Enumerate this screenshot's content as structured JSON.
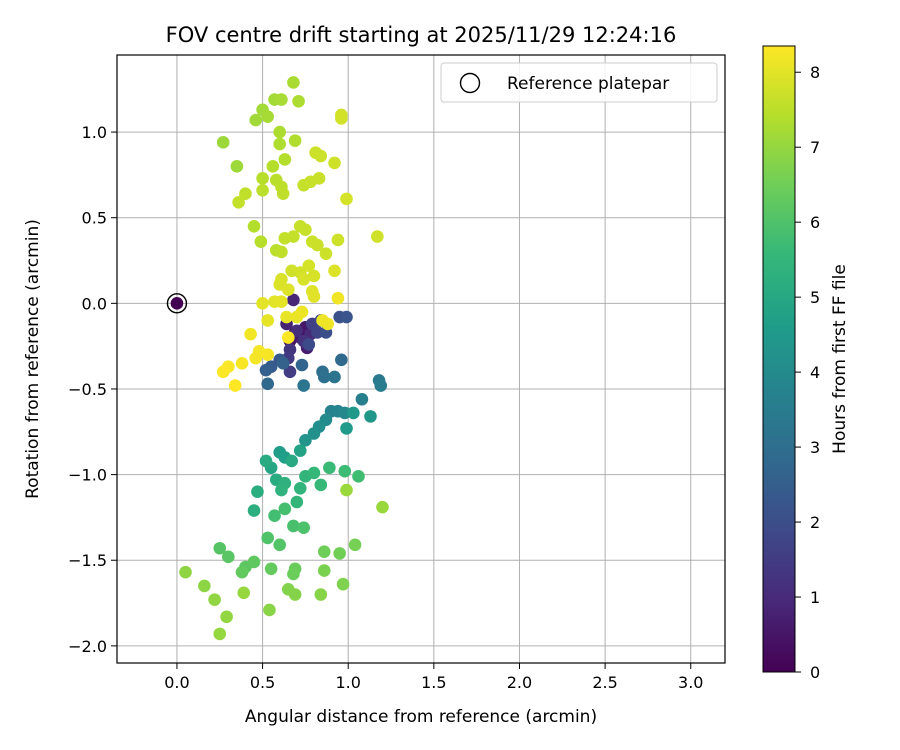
{
  "chart_data": {
    "type": "scatter",
    "title": "FOV centre drift starting at 2025/11/29 12:24:16",
    "xlabel": "Angular distance from reference (arcmin)",
    "ylabel": "Rotation from reference (arcmin)",
    "xlim": [
      -0.35,
      3.2
    ],
    "ylim": [
      -2.1,
      1.45
    ],
    "xticks": [
      0.0,
      0.5,
      1.0,
      1.5,
      2.0,
      2.5,
      3.0
    ],
    "xtick_labels": [
      "0.0",
      "0.5",
      "1.0",
      "1.5",
      "2.0",
      "2.5",
      "3.0"
    ],
    "yticks": [
      -2.0,
      -1.5,
      -1.0,
      -0.5,
      0.0,
      0.5,
      1.0
    ],
    "ytick_labels": [
      "−2.0",
      "−1.5",
      "−1.0",
      "−0.5",
      "0.0",
      "0.5",
      "1.0"
    ],
    "grid": true,
    "legend": {
      "position": "top-right",
      "label": "Reference platepar"
    },
    "reference_point": {
      "x": 0.0,
      "y": 0.0,
      "c": 0
    },
    "colorbar": {
      "label": "Hours from first FF file",
      "range": [
        0,
        8.35
      ],
      "ticks": [
        0,
        1,
        2,
        3,
        4,
        5,
        6,
        7,
        8
      ],
      "tick_labels": [
        "0",
        "1",
        "2",
        "3",
        "4",
        "5",
        "6",
        "7",
        "8"
      ],
      "colormap": "viridis",
      "stops": [
        "#440154",
        "#482878",
        "#3e4989",
        "#31688e",
        "#26828e",
        "#1f9e89",
        "#35b779",
        "#6ece58",
        "#b5de2b",
        "#fde725"
      ]
    },
    "points": [
      [
        0.69,
        -0.17,
        0.2
      ],
      [
        0.72,
        -0.2,
        0.3
      ],
      [
        0.66,
        -0.22,
        0.4
      ],
      [
        0.75,
        -0.14,
        0.5
      ],
      [
        0.69,
        -0.19,
        0.6
      ],
      [
        0.76,
        -0.26,
        0.7
      ],
      [
        0.64,
        -0.12,
        0.8
      ],
      [
        0.68,
        0.02,
        0.9
      ],
      [
        0.78,
        -0.18,
        1.0
      ],
      [
        0.7,
        -0.16,
        1.1
      ],
      [
        0.74,
        -0.22,
        1.2
      ],
      [
        0.66,
        -0.27,
        1.3
      ],
      [
        0.65,
        -0.32,
        1.4
      ],
      [
        0.66,
        -0.4,
        1.5
      ],
      [
        0.79,
        -0.12,
        1.6
      ],
      [
        0.82,
        -0.17,
        1.7
      ],
      [
        0.84,
        -0.1,
        1.8
      ],
      [
        0.77,
        -0.24,
        1.9
      ],
      [
        0.87,
        -0.17,
        2.0
      ],
      [
        0.95,
        -0.08,
        2.1
      ],
      [
        0.99,
        -0.08,
        2.2
      ],
      [
        0.6,
        -0.33,
        2.3
      ],
      [
        0.55,
        -0.37,
        2.4
      ],
      [
        0.52,
        -0.39,
        2.5
      ],
      [
        0.62,
        -0.35,
        2.6
      ],
      [
        0.73,
        -0.36,
        2.7
      ],
      [
        0.53,
        -0.47,
        2.8
      ],
      [
        0.96,
        -0.33,
        2.9
      ],
      [
        0.85,
        -0.4,
        3.0
      ],
      [
        0.86,
        -0.43,
        3.1
      ],
      [
        0.92,
        -0.43,
        3.2
      ],
      [
        0.74,
        -0.48,
        3.3
      ],
      [
        1.18,
        -0.45,
        3.4
      ],
      [
        1.19,
        -0.48,
        3.5
      ],
      [
        1.08,
        -0.56,
        3.6
      ],
      [
        0.9,
        -0.63,
        3.7
      ],
      [
        0.94,
        -0.63,
        3.8
      ],
      [
        0.98,
        -0.64,
        3.9
      ],
      [
        0.87,
        -0.68,
        4.0
      ],
      [
        0.83,
        -0.72,
        4.1
      ],
      [
        0.8,
        -0.76,
        4.2
      ],
      [
        0.75,
        -0.8,
        4.3
      ],
      [
        1.13,
        -0.66,
        4.4
      ],
      [
        1.03,
        -0.64,
        4.45
      ],
      [
        0.99,
        -0.73,
        4.5
      ],
      [
        0.6,
        -0.87,
        4.6
      ],
      [
        0.63,
        -0.9,
        4.7
      ],
      [
        0.72,
        -0.86,
        4.8
      ],
      [
        0.55,
        -0.96,
        4.9
      ],
      [
        0.67,
        -0.92,
        5.0
      ],
      [
        0.52,
        -0.92,
        5.1
      ],
      [
        0.58,
        -1.03,
        5.15
      ],
      [
        0.47,
        -1.1,
        5.2
      ],
      [
        0.45,
        -1.21,
        5.25
      ],
      [
        0.63,
        -1.05,
        5.3
      ],
      [
        0.61,
        -1.09,
        5.35
      ],
      [
        0.72,
        -1.08,
        5.4
      ],
      [
        0.75,
        -1.01,
        5.45
      ],
      [
        0.7,
        -1.16,
        5.5
      ],
      [
        0.8,
        -0.99,
        5.55
      ],
      [
        0.84,
        -1.06,
        5.6
      ],
      [
        0.89,
        -0.96,
        5.65
      ],
      [
        0.98,
        -0.98,
        5.7
      ],
      [
        1.06,
        -1.01,
        5.75
      ],
      [
        0.57,
        -1.24,
        5.8
      ],
      [
        0.63,
        -1.2,
        5.85
      ],
      [
        0.68,
        -1.3,
        5.9
      ],
      [
        0.74,
        -1.31,
        5.95
      ],
      [
        0.53,
        -1.37,
        6.0
      ],
      [
        0.6,
        -1.41,
        6.05
      ],
      [
        0.25,
        -1.43,
        6.1
      ],
      [
        0.3,
        -1.48,
        6.15
      ],
      [
        0.4,
        -1.54,
        6.2
      ],
      [
        0.45,
        -1.51,
        6.25
      ],
      [
        0.38,
        -1.57,
        6.3
      ],
      [
        0.55,
        -1.55,
        6.35
      ],
      [
        0.69,
        -1.55,
        6.4
      ],
      [
        0.68,
        -1.58,
        6.45
      ],
      [
        0.86,
        -1.45,
        6.5
      ],
      [
        0.95,
        -1.46,
        6.55
      ],
      [
        1.04,
        -1.41,
        6.6
      ],
      [
        0.86,
        -1.56,
        6.65
      ],
      [
        0.97,
        -1.64,
        6.7
      ],
      [
        0.65,
        -1.67,
        6.75
      ],
      [
        0.69,
        -1.7,
        6.8
      ],
      [
        0.84,
        -1.7,
        6.82
      ],
      [
        0.54,
        -1.79,
        6.85
      ],
      [
        0.16,
        -1.65,
        6.9
      ],
      [
        0.05,
        -1.57,
        6.92
      ],
      [
        0.22,
        -1.73,
        6.95
      ],
      [
        0.29,
        -1.83,
        6.97
      ],
      [
        0.25,
        -1.93,
        7.0
      ],
      [
        0.39,
        -1.69,
        7.02
      ],
      [
        1.2,
        -1.19,
        7.05
      ],
      [
        0.99,
        -1.09,
        7.08
      ],
      [
        0.27,
        0.94,
        7.1
      ],
      [
        0.35,
        0.8,
        7.12
      ],
      [
        0.46,
        1.07,
        7.15
      ],
      [
        0.5,
        1.13,
        7.17
      ],
      [
        0.57,
        1.19,
        7.2
      ],
      [
        0.53,
        1.09,
        7.22
      ],
      [
        0.61,
        1.19,
        7.25
      ],
      [
        0.68,
        1.29,
        7.27
      ],
      [
        0.71,
        1.18,
        7.3
      ],
      [
        0.6,
        1.0,
        7.32
      ],
      [
        0.6,
        0.93,
        7.35
      ],
      [
        0.69,
        0.95,
        7.37
      ],
      [
        0.63,
        0.84,
        7.4
      ],
      [
        0.56,
        0.8,
        7.42
      ],
      [
        0.5,
        0.73,
        7.45
      ],
      [
        0.58,
        0.72,
        7.47
      ],
      [
        0.5,
        0.66,
        7.5
      ],
      [
        0.61,
        0.68,
        7.52
      ],
      [
        0.62,
        0.64,
        7.55
      ],
      [
        0.4,
        0.64,
        7.57
      ],
      [
        0.36,
        0.59,
        7.6
      ],
      [
        0.74,
        0.69,
        7.62
      ],
      [
        0.78,
        0.71,
        7.65
      ],
      [
        0.83,
        0.73,
        7.67
      ],
      [
        0.81,
        0.88,
        7.7
      ],
      [
        0.84,
        0.86,
        7.72
      ],
      [
        0.92,
        0.82,
        7.75
      ],
      [
        0.96,
        1.1,
        7.77
      ],
      [
        0.96,
        1.08,
        7.8
      ],
      [
        0.99,
        0.61,
        7.82
      ],
      [
        0.45,
        0.45,
        7.4
      ],
      [
        0.49,
        0.36,
        7.45
      ],
      [
        0.58,
        0.31,
        7.5
      ],
      [
        0.61,
        0.3,
        7.55
      ],
      [
        0.63,
        0.38,
        7.6
      ],
      [
        0.68,
        0.39,
        7.62
      ],
      [
        0.72,
        0.45,
        7.64
      ],
      [
        0.75,
        0.43,
        7.66
      ],
      [
        0.79,
        0.36,
        7.68
      ],
      [
        0.82,
        0.34,
        7.7
      ],
      [
        0.87,
        0.29,
        7.72
      ],
      [
        0.94,
        0.37,
        7.74
      ],
      [
        1.17,
        0.39,
        7.76
      ],
      [
        0.67,
        0.19,
        7.78
      ],
      [
        0.72,
        0.18,
        7.8
      ],
      [
        0.77,
        0.22,
        7.82
      ],
      [
        0.8,
        0.16,
        7.84
      ],
      [
        0.74,
        0.14,
        7.86
      ],
      [
        0.61,
        0.14,
        7.88
      ],
      [
        0.6,
        0.11,
        7.9
      ],
      [
        0.65,
        0.08,
        7.92
      ],
      [
        0.92,
        0.19,
        7.94
      ],
      [
        0.79,
        0.07,
        7.96
      ],
      [
        0.8,
        0.04,
        7.98
      ],
      [
        0.57,
        0.01,
        8.0
      ],
      [
        0.5,
        0.0,
        8.02
      ],
      [
        0.53,
        -0.1,
        8.04
      ],
      [
        0.61,
        0.01,
        8.06
      ],
      [
        0.64,
        -0.08,
        8.08
      ],
      [
        0.7,
        -0.08,
        8.1
      ],
      [
        0.73,
        -0.05,
        8.12
      ],
      [
        0.85,
        -0.1,
        8.14
      ],
      [
        0.88,
        -0.12,
        8.16
      ],
      [
        0.94,
        0.03,
        8.18
      ],
      [
        0.43,
        -0.18,
        8.2
      ],
      [
        0.48,
        -0.28,
        8.22
      ],
      [
        0.46,
        -0.32,
        8.24
      ],
      [
        0.53,
        -0.3,
        8.26
      ],
      [
        0.38,
        -0.35,
        8.28
      ],
      [
        0.3,
        -0.37,
        8.3
      ],
      [
        0.27,
        -0.4,
        8.32
      ],
      [
        0.34,
        -0.48,
        8.34
      ],
      [
        0.65,
        -0.2,
        8.35
      ]
    ]
  }
}
